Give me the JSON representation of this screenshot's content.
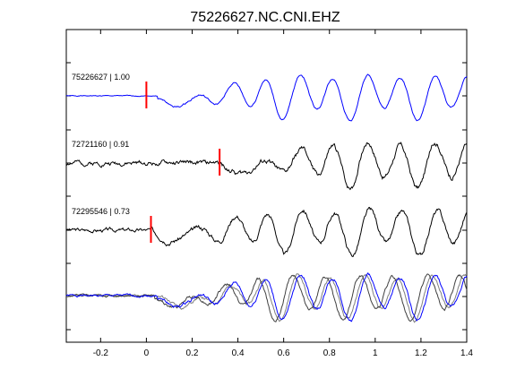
{
  "chart_data": {
    "type": "line",
    "title": "75226627.NC.CNI.EHZ",
    "xlabel": "",
    "ylabel": "",
    "xlim": [
      -0.35,
      1.4
    ],
    "x_ticks": [
      -0.2,
      0,
      0.2,
      0.4,
      0.6,
      0.8,
      1,
      1.2,
      1.4
    ],
    "x_tick_labels": [
      "-0.2",
      "0",
      "0.2",
      "0.4",
      "0.6",
      "0.8",
      "1",
      "1.2",
      "1.4"
    ],
    "grid": false,
    "traces": [
      {
        "label": "75226627 | 1.00",
        "color": "#0000ff",
        "pick_time": 0.0,
        "onset": 0.05,
        "pre_noise": 0.02,
        "amplitude": 1.0,
        "seed": 1
      },
      {
        "label": "72721160 | 0.91",
        "color": "#000000",
        "pick_time": 0.32,
        "onset": 0.33,
        "pre_noise": 0.12,
        "amplitude": 1.0,
        "seed": 2
      },
      {
        "label": "72295546 | 0.73",
        "color": "#000000",
        "pick_time": 0.02,
        "onset": 0.03,
        "pre_noise": 0.1,
        "amplitude": 1.0,
        "seed": 3
      }
    ],
    "overlay": {
      "traces": [
        {
          "color": "#7f7f7f",
          "seed": 11,
          "shift": 0.02
        },
        {
          "color": "#3f3f3f",
          "seed": 12,
          "shift": -0.015
        },
        {
          "color": "#0000ff",
          "seed": 1,
          "shift": 0.0
        }
      ]
    },
    "pick_color": "#ff0000"
  }
}
